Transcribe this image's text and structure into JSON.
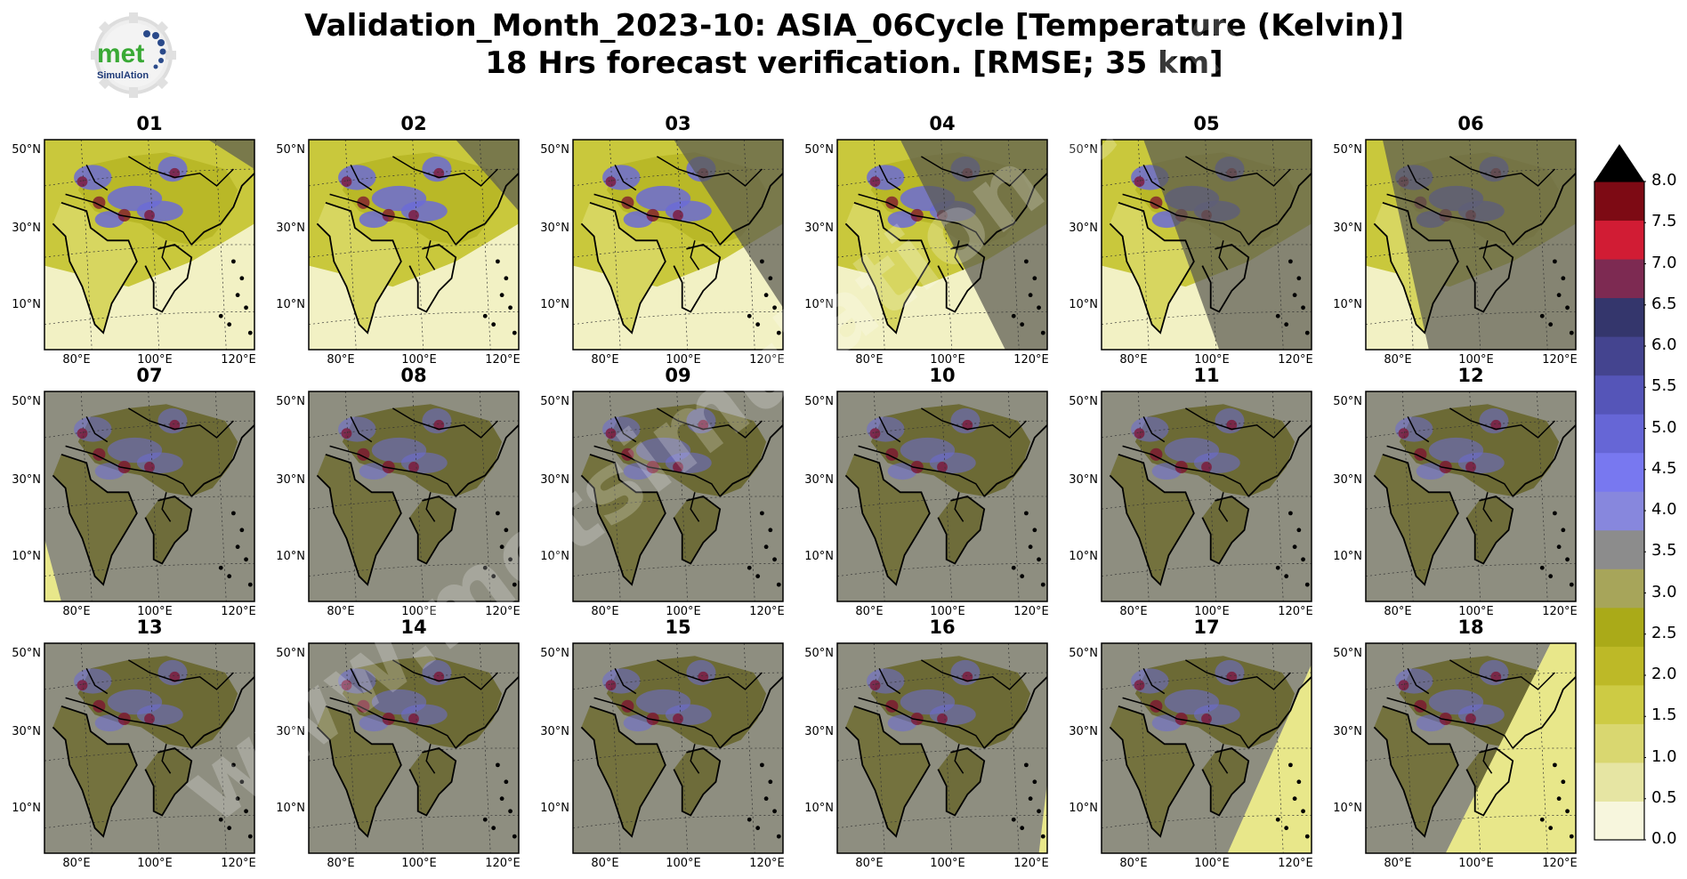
{
  "title": {
    "line1": "Validation_Month_2023-10: ASIA_06Cycle [Temperature (Kelvin)]",
    "line2": "18 Hrs forecast verification.  [RMSE; 35 km]"
  },
  "logo": {
    "top": "met",
    "bottom": "SimulAtion"
  },
  "watermark": "www.metsimulation.com",
  "chart_data": {
    "type": "heatmap",
    "panels": [
      "01",
      "02",
      "03",
      "04",
      "05",
      "06",
      "07",
      "08",
      "09",
      "10",
      "11",
      "12",
      "13",
      "14",
      "15",
      "16",
      "17",
      "18"
    ],
    "lat_ticks": [
      "50°N",
      "30°N",
      "10°N"
    ],
    "lon_ticks": [
      "80°E",
      "100°E",
      "120°E"
    ],
    "colorbar": {
      "ticks": [
        "0.0",
        "0.5",
        "1.0",
        "1.5",
        "2.0",
        "2.5",
        "3.0",
        "3.5",
        "4.0",
        "4.5",
        "5.0",
        "5.5",
        "6.0",
        "6.5",
        "7.0",
        "7.5",
        "8.0"
      ],
      "extend": "max",
      "colors": [
        "#f7f6dd",
        "#e6e5a3",
        "#d9d770",
        "#cdcb44",
        "#bdb927",
        "#aaaa18",
        "#a7a55a",
        "#8c8c8c",
        "#8787dd",
        "#7878f0",
        "#6666d6",
        "#5555b8",
        "#44448f",
        "#34366c",
        "#7d2a52",
        "#d11c34",
        "#7d0a14"
      ]
    },
    "panel_state": [
      {
        "mode": "light",
        "cover": "right-tri"
      },
      {
        "mode": "light",
        "cover": "right-small"
      },
      {
        "mode": "light",
        "cover": "right-band"
      },
      {
        "mode": "light",
        "cover": "right-half"
      },
      {
        "mode": "light",
        "cover": "right-most"
      },
      {
        "mode": "light",
        "cover": "left-sliver"
      },
      {
        "mode": "dark",
        "cover": "left-tiny"
      },
      {
        "mode": "dark",
        "cover": "none"
      },
      {
        "mode": "dark",
        "cover": "none"
      },
      {
        "mode": "dark",
        "cover": "none"
      },
      {
        "mode": "dark",
        "cover": "none"
      },
      {
        "mode": "dark",
        "cover": "none"
      },
      {
        "mode": "dark",
        "cover": "none"
      },
      {
        "mode": "dark",
        "cover": "none"
      },
      {
        "mode": "dark",
        "cover": "none"
      },
      {
        "mode": "dark",
        "cover": "corner-right"
      },
      {
        "mode": "dark",
        "cover": "reveal-right"
      },
      {
        "mode": "dark",
        "cover": "reveal-big"
      }
    ]
  }
}
